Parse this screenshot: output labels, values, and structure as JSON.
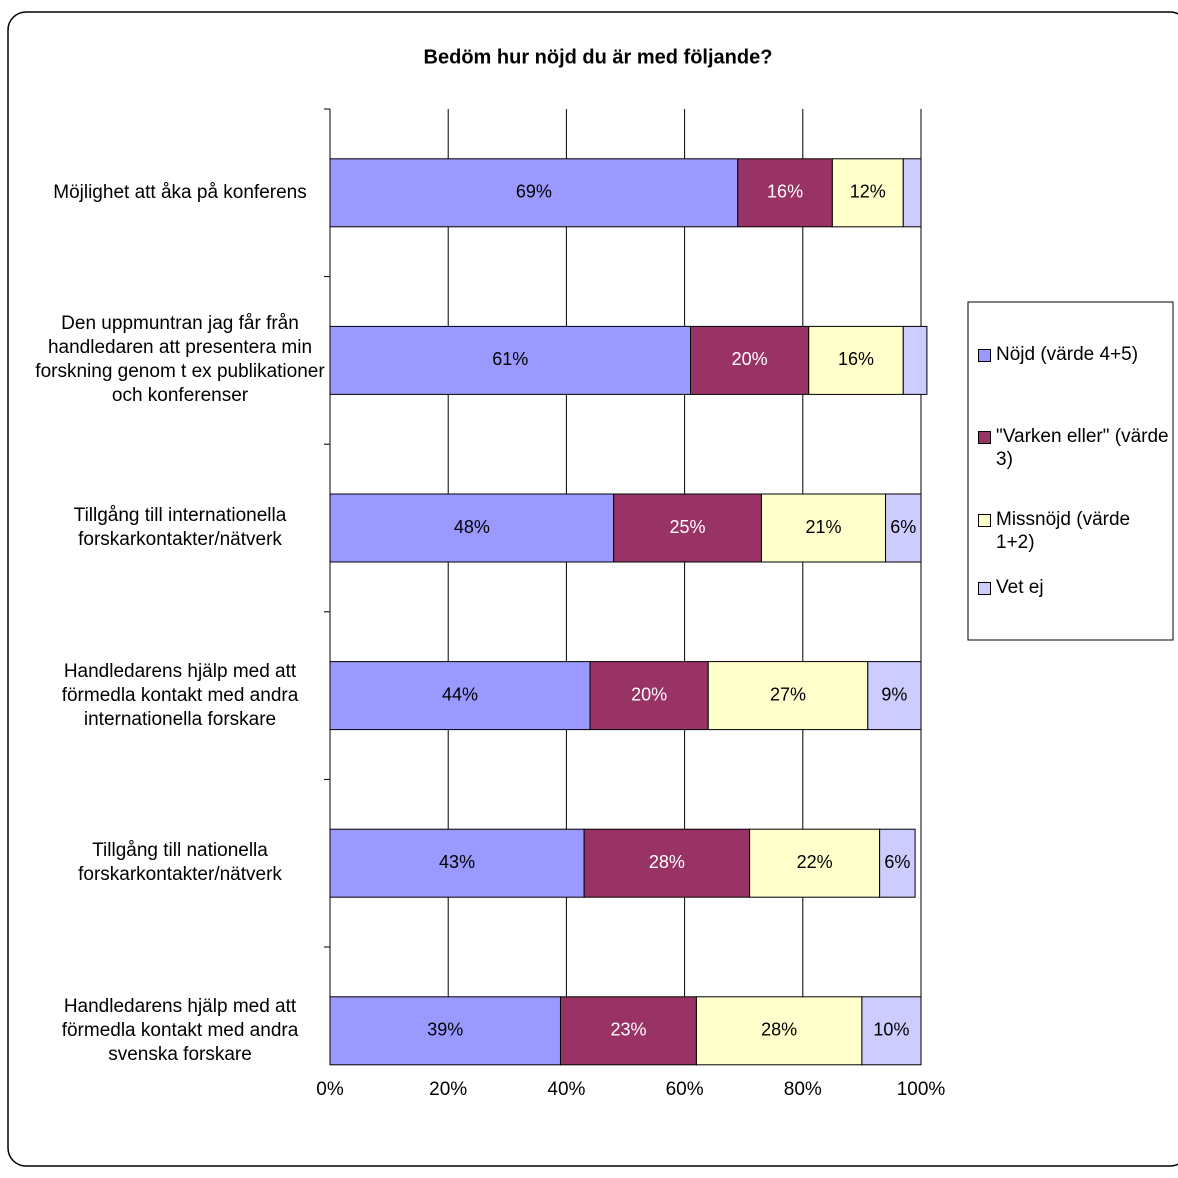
{
  "chart_data": {
    "type": "stacked_barh",
    "title": "Bedöm hur nöjd du är med följande?",
    "categories": [
      "Möjlighet att åka på konferens",
      "Den uppmuntran jag får från handledaren att presentera min forskning genom t ex publikationer och konferenser",
      "Tillgång till internationella forskarkontakter/nätverk",
      "Handledarens hjälp med att förmedla kontakt med andra internationella forskare",
      "Tillgång till nationella forskarkontakter/nätverk",
      "Handledarens hjälp med att förmedla kontakt med andra svenska forskare"
    ],
    "series": [
      {
        "name": "Nöjd (värde 4+5)",
        "color": "#9999ff",
        "values": [
          69,
          61,
          48,
          44,
          43,
          39
        ],
        "value_labels": [
          "69%",
          "61%",
          "48%",
          "44%",
          "43%",
          "39%"
        ]
      },
      {
        "name": "\"Varken eller\" (värde 3)",
        "color": "#993366",
        "values": [
          16,
          20,
          25,
          20,
          28,
          23
        ],
        "value_labels": [
          "16%",
          "20%",
          "25%",
          "20%",
          "28%",
          "23%"
        ]
      },
      {
        "name": "Missnöjd (värde 1+2)",
        "color": "#ffffcc",
        "values": [
          12,
          16,
          21,
          27,
          22,
          28
        ],
        "value_labels": [
          "12%",
          "16%",
          "21%",
          "27%",
          "22%",
          "28%"
        ]
      },
      {
        "name": "Vet ej",
        "color": "#ccccff",
        "values": [
          3,
          4,
          6,
          9,
          6,
          10
        ],
        "value_labels": [
          null,
          null,
          "6%",
          "9%",
          "6%",
          "10%"
        ]
      }
    ],
    "xlim": [
      0,
      100
    ],
    "xticks": [
      {
        "value": 0,
        "label": "0%"
      },
      {
        "value": 20,
        "label": "20%"
      },
      {
        "value": 40,
        "label": "40%"
      },
      {
        "value": 60,
        "label": "60%"
      },
      {
        "value": 80,
        "label": "80%"
      },
      {
        "value": 100,
        "label": "100%"
      }
    ],
    "grid": true,
    "legend": "right"
  }
}
